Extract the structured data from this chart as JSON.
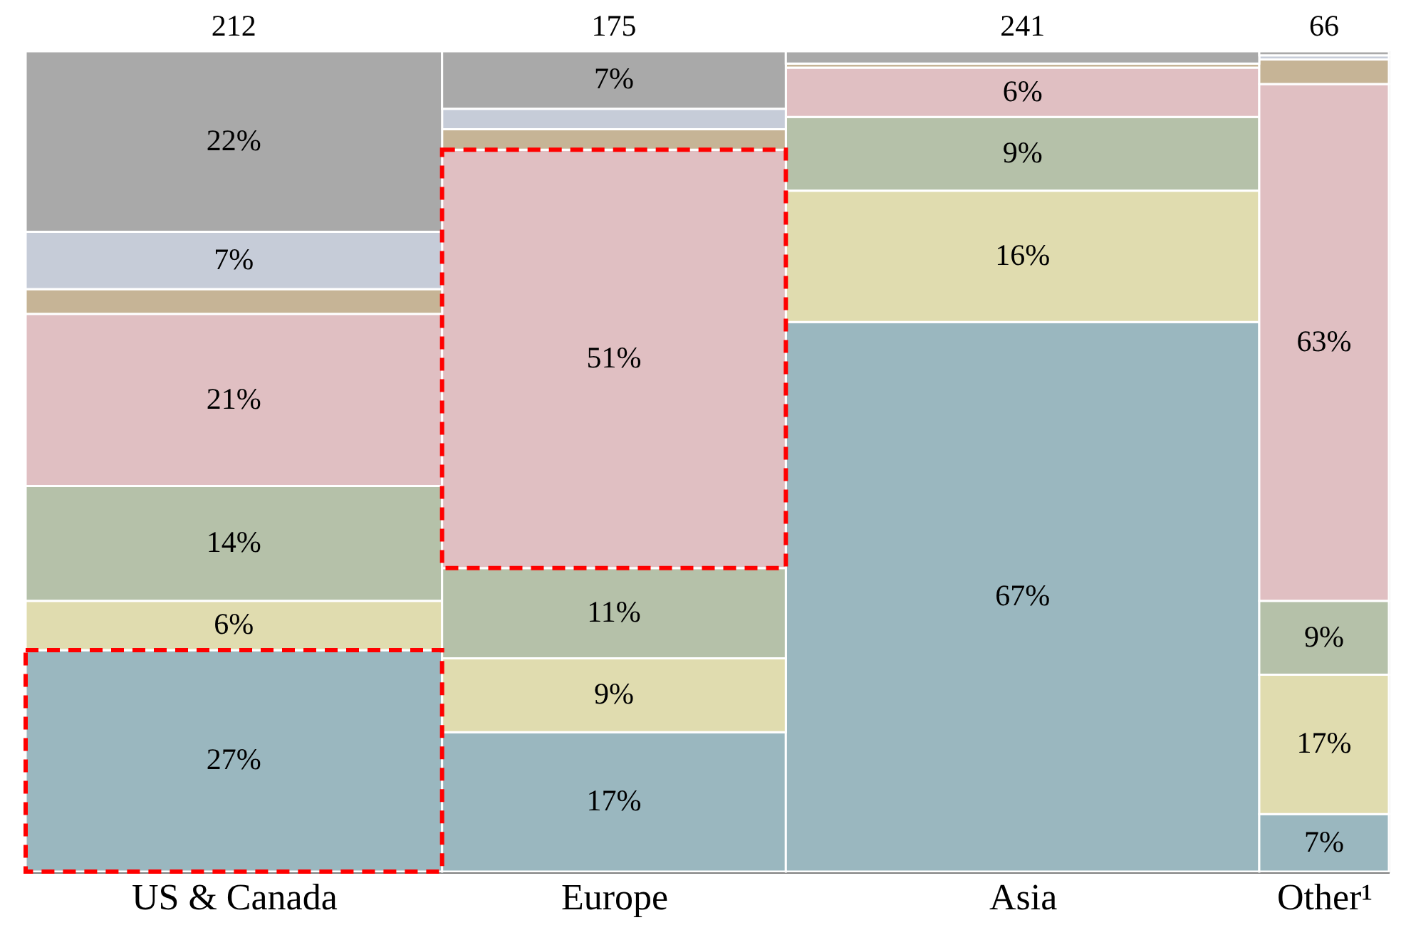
{
  "chart_data": {
    "type": "bar",
    "stacked": true,
    "categories": [
      "US & Canada",
      "Europe",
      "Asia",
      "Other¹"
    ],
    "annotations": [
      "212",
      "175",
      "241",
      "66"
    ],
    "tick_labels": "x",
    "series": [
      {
        "color": "#9ab7bf",
        "values": [
          27,
          17,
          67,
          7
        ],
        "value_labels": [
          "27%",
          "17%",
          "67%",
          "7%"
        ]
      },
      {
        "color": "#e0dcaf",
        "values": [
          6,
          9,
          16,
          17
        ],
        "value_labels": [
          "6%",
          "9%",
          "16%",
          "17%"
        ]
      },
      {
        "color": "#b5c1a9",
        "values": [
          14,
          11,
          9,
          9
        ],
        "value_labels": [
          "14%",
          "11%",
          "9%",
          "9%"
        ]
      },
      {
        "color": "#e0bfc2",
        "values": [
          21,
          51,
          6,
          63
        ],
        "value_labels": [
          "21%",
          "51%",
          "6%",
          "63%"
        ]
      },
      {
        "color": "#c6b496",
        "values": [
          3,
          2.5,
          0.5,
          3
        ],
        "value_labels": [
          null,
          null,
          null,
          null
        ]
      },
      {
        "color": "#c6ccd8",
        "values": [
          7,
          2.5,
          null,
          0.5
        ],
        "value_labels": [
          "7%",
          null,
          null,
          null
        ]
      },
      {
        "color": "#a9a9a9",
        "values": [
          22,
          7,
          1.5,
          0.5
        ],
        "value_labels": [
          "22%",
          "7%",
          null,
          null
        ]
      }
    ]
  }
}
